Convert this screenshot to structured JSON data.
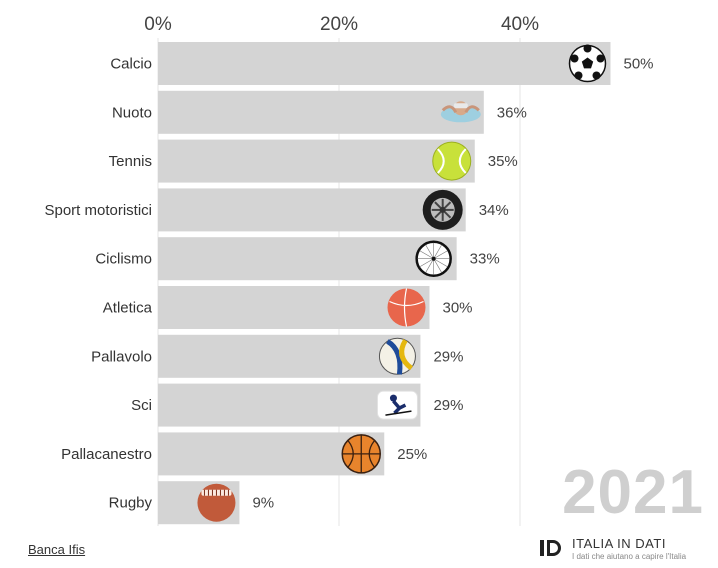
{
  "chart_data": {
    "type": "bar",
    "orientation": "horizontal",
    "categories": [
      "Calcio",
      "Nuoto",
      "Tennis",
      "Sport motoristici",
      "Ciclismo",
      "Atletica",
      "Pallavolo",
      "Sci",
      "Pallacanestro",
      "Rugby"
    ],
    "values": [
      50,
      36,
      35,
      34,
      33,
      30,
      29,
      29,
      25,
      9
    ],
    "value_labels": [
      "50%",
      "36%",
      "35%",
      "34%",
      "33%",
      "30%",
      "29%",
      "29%",
      "25%",
      "9%"
    ],
    "icons": [
      "soccer-ball-icon",
      "swimmer-icon",
      "tennis-ball-icon",
      "tire-icon",
      "bicycle-wheel-icon",
      "running-ball-icon",
      "volleyball-icon",
      "skier-icon",
      "basketball-icon",
      "rugby-ball-icon"
    ],
    "xticks": [
      "0%",
      "20%",
      "40%"
    ],
    "xtick_values": [
      0,
      20,
      40
    ],
    "xlim": [
      0,
      50
    ],
    "grid": true,
    "xaxis_position": "top",
    "bar_color": "#d4d4d4",
    "grid_color": "#e6e6e6"
  },
  "year": "2021",
  "source": "Banca Ifis",
  "brand": {
    "name": "ITALIA IN DATI",
    "tagline": "I dati che aiutano a capire l'Italia"
  }
}
